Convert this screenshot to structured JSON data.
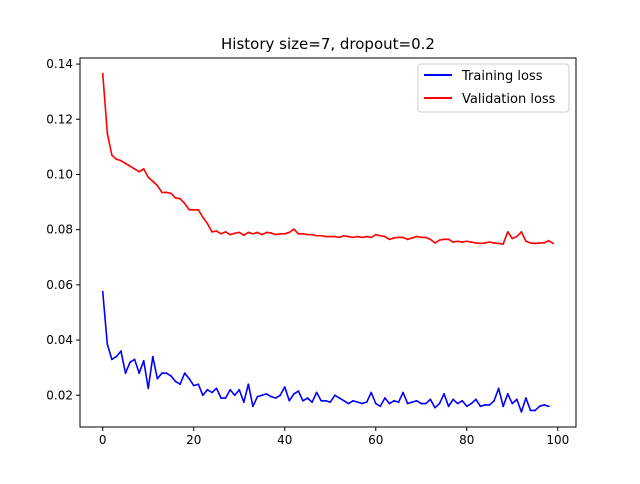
{
  "chart_data": {
    "type": "line",
    "title": "History size=7, dropout=0.2",
    "xlabel": "",
    "ylabel": "",
    "xlim": [
      -5,
      104
    ],
    "ylim": [
      0.0085,
      0.1422
    ],
    "x_ticks": [
      0,
      20,
      40,
      60,
      80,
      100
    ],
    "y_ticks": [
      0.02,
      0.04,
      0.06,
      0.08,
      0.1,
      0.12,
      0.14
    ],
    "y_tick_labels": [
      "0.02",
      "0.04",
      "0.06",
      "0.08",
      "0.10",
      "0.12",
      "0.14"
    ],
    "grid": false,
    "legend_position": "top-right",
    "series": [
      {
        "name": "Training loss",
        "color": "#0000ff",
        "values": [
          0.0575,
          0.0385,
          0.033,
          0.034,
          0.036,
          0.028,
          0.032,
          0.033,
          0.028,
          0.0325,
          0.0225,
          0.034,
          0.026,
          0.028,
          0.028,
          0.027,
          0.025,
          0.024,
          0.028,
          0.026,
          0.0235,
          0.024,
          0.02,
          0.022,
          0.021,
          0.0225,
          0.019,
          0.019,
          0.022,
          0.02,
          0.022,
          0.0175,
          0.024,
          0.016,
          0.0195,
          0.02,
          0.0205,
          0.0195,
          0.019,
          0.02,
          0.023,
          0.018,
          0.0205,
          0.0215,
          0.018,
          0.019,
          0.0175,
          0.021,
          0.018,
          0.018,
          0.0175,
          0.02,
          0.019,
          0.018,
          0.017,
          0.018,
          0.0175,
          0.017,
          0.0175,
          0.021,
          0.017,
          0.016,
          0.019,
          0.017,
          0.018,
          0.0175,
          0.021,
          0.017,
          0.0175,
          0.018,
          0.017,
          0.017,
          0.0185,
          0.0155,
          0.017,
          0.0205,
          0.016,
          0.0185,
          0.017,
          0.018,
          0.016,
          0.017,
          0.0185,
          0.016,
          0.0165,
          0.0165,
          0.018,
          0.0225,
          0.016,
          0.0205,
          0.017,
          0.0185,
          0.014,
          0.019,
          0.0145,
          0.0145,
          0.016,
          0.0165,
          0.016
        ]
      },
      {
        "name": "Validation loss",
        "color": "#ff0000",
        "values": [
          0.1365,
          0.115,
          0.107,
          0.1055,
          0.105,
          0.104,
          0.103,
          0.102,
          0.101,
          0.102,
          0.099,
          0.0975,
          0.096,
          0.0935,
          0.0935,
          0.0932,
          0.0915,
          0.0912,
          0.0895,
          0.0872,
          0.0872,
          0.0872,
          0.0845,
          0.0822,
          0.0792,
          0.0795,
          0.0785,
          0.0792,
          0.0782,
          0.0787,
          0.079,
          0.078,
          0.079,
          0.0785,
          0.079,
          0.0782,
          0.079,
          0.0788,
          0.0782,
          0.0785,
          0.0785,
          0.079,
          0.0802,
          0.0785,
          0.0785,
          0.0782,
          0.0782,
          0.0778,
          0.0778,
          0.0775,
          0.0775,
          0.0775,
          0.0772,
          0.0778,
          0.0775,
          0.0772,
          0.0775,
          0.0772,
          0.0775,
          0.0772,
          0.0782,
          0.0778,
          0.0775,
          0.0765,
          0.077,
          0.0772,
          0.0772,
          0.0765,
          0.077,
          0.0775,
          0.0772,
          0.0772,
          0.0765,
          0.0752,
          0.0762,
          0.0765,
          0.0765,
          0.0755,
          0.0758,
          0.0755,
          0.0758,
          0.0755,
          0.0752,
          0.075,
          0.0752,
          0.0755,
          0.0752,
          0.075,
          0.0748,
          0.0792,
          0.0768,
          0.0775,
          0.0792,
          0.0758,
          0.0752,
          0.075,
          0.0752,
          0.0752,
          0.076,
          0.075
        ]
      }
    ]
  }
}
